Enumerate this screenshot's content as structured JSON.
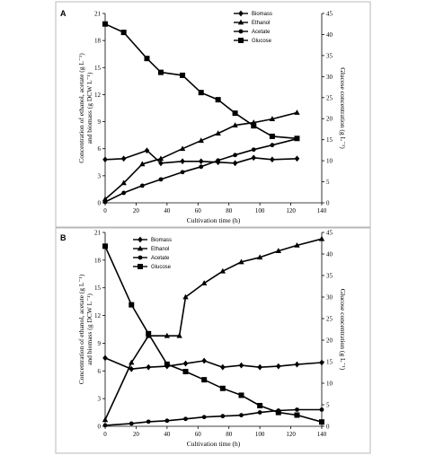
{
  "chart_data": [
    {
      "panel": "A",
      "type": "line",
      "xlabel": "Cultivation time (h)",
      "ylabel_left": [
        "Concentration of ethanol, acetate (g L⁻¹)",
        "and biomass (g DCW L⁻¹)"
      ],
      "ylabel_right": "Glucose concentration (g L⁻¹)",
      "xlim": [
        0,
        140
      ],
      "xticks": [
        0,
        20,
        40,
        60,
        80,
        100,
        120,
        140
      ],
      "ylim_left": [
        0,
        21
      ],
      "yticks_left": [
        0,
        3,
        6,
        9,
        12,
        15,
        18,
        21
      ],
      "ylim_right": [
        0,
        45
      ],
      "yticks_right": [
        0,
        5,
        10,
        15,
        20,
        25,
        30,
        35,
        40,
        45
      ],
      "legend_position": "top-right",
      "series": [
        {
          "name": "Biomass",
          "axis": "left",
          "marker": "diamond",
          "x": [
            0,
            12,
            27,
            36,
            50,
            62,
            73,
            84,
            96,
            108,
            124
          ],
          "y": [
            4.8,
            4.9,
            5.8,
            4.4,
            4.6,
            4.6,
            4.5,
            4.4,
            5.0,
            4.8,
            4.9
          ]
        },
        {
          "name": "Ethanol",
          "axis": "left",
          "marker": "triangle",
          "x": [
            0,
            12,
            24,
            36,
            50,
            62,
            73,
            84,
            96,
            108,
            124
          ],
          "y": [
            0.4,
            2.2,
            4.3,
            4.9,
            6.0,
            6.9,
            7.7,
            8.6,
            8.9,
            9.3,
            10.0
          ]
        },
        {
          "name": "Acetate",
          "axis": "left",
          "marker": "circle",
          "x": [
            0,
            12,
            24,
            36,
            50,
            62,
            73,
            84,
            96,
            108,
            124
          ],
          "y": [
            0.1,
            1.1,
            1.9,
            2.6,
            3.4,
            4.0,
            4.7,
            5.3,
            5.9,
            6.4,
            7.1
          ]
        },
        {
          "name": "Glucose",
          "axis": "right",
          "marker": "square",
          "x": [
            0,
            12,
            27,
            36,
            50,
            62,
            73,
            84,
            96,
            108,
            124
          ],
          "y": [
            42.5,
            40.5,
            34.3,
            31.0,
            30.3,
            26.2,
            24.5,
            21.3,
            18.3,
            15.8,
            15.3
          ]
        }
      ]
    },
    {
      "panel": "B",
      "type": "line",
      "xlabel": "Cultivation time (h)",
      "ylabel_left": [
        "Concentration of ethanol, acetate (g L⁻¹)",
        "and biomass (g DCW L⁻¹)"
      ],
      "ylabel_right": "Glucose concentration (g L⁻¹)",
      "xlim": [
        0,
        140
      ],
      "xticks": [
        0,
        20,
        40,
        60,
        80,
        100,
        120,
        140
      ],
      "ylim_left": [
        0,
        21
      ],
      "yticks_left": [
        0,
        3,
        6,
        9,
        12,
        15,
        18,
        21
      ],
      "ylim_right": [
        0,
        45
      ],
      "yticks_right": [
        0,
        5,
        10,
        15,
        20,
        25,
        30,
        35,
        40,
        45
      ],
      "legend_position": "top-left",
      "series": [
        {
          "name": "Biomass",
          "axis": "left",
          "marker": "diamond",
          "x": [
            0,
            17,
            28,
            40,
            52,
            64,
            76,
            88,
            100,
            112,
            124,
            140
          ],
          "y": [
            7.4,
            6.2,
            6.4,
            6.5,
            6.8,
            7.1,
            6.4,
            6.6,
            6.4,
            6.5,
            6.7,
            6.9
          ]
        },
        {
          "name": "Ethanol",
          "axis": "left",
          "marker": "triangle",
          "x": [
            0,
            17,
            28,
            40,
            48,
            52,
            64,
            76,
            88,
            100,
            112,
            124,
            140
          ],
          "y": [
            0.7,
            6.9,
            9.8,
            9.8,
            9.8,
            14.0,
            15.5,
            16.8,
            17.8,
            18.3,
            19.0,
            19.6,
            20.3
          ]
        },
        {
          "name": "Acetate",
          "axis": "left",
          "marker": "circle",
          "x": [
            0,
            17,
            28,
            40,
            52,
            64,
            76,
            88,
            100,
            112,
            124,
            140
          ],
          "y": [
            0.1,
            0.3,
            0.5,
            0.6,
            0.8,
            1.0,
            1.1,
            1.2,
            1.5,
            1.7,
            1.8,
            1.8
          ]
        },
        {
          "name": "Glucose",
          "axis": "right",
          "marker": "square",
          "x": [
            0,
            17,
            28,
            40,
            52,
            64,
            76,
            88,
            100,
            112,
            124,
            140
          ],
          "y": [
            41.8,
            28.2,
            21.5,
            14.4,
            12.7,
            10.8,
            8.8,
            7.2,
            4.8,
            3.2,
            2.6,
            1.0
          ]
        }
      ]
    }
  ]
}
